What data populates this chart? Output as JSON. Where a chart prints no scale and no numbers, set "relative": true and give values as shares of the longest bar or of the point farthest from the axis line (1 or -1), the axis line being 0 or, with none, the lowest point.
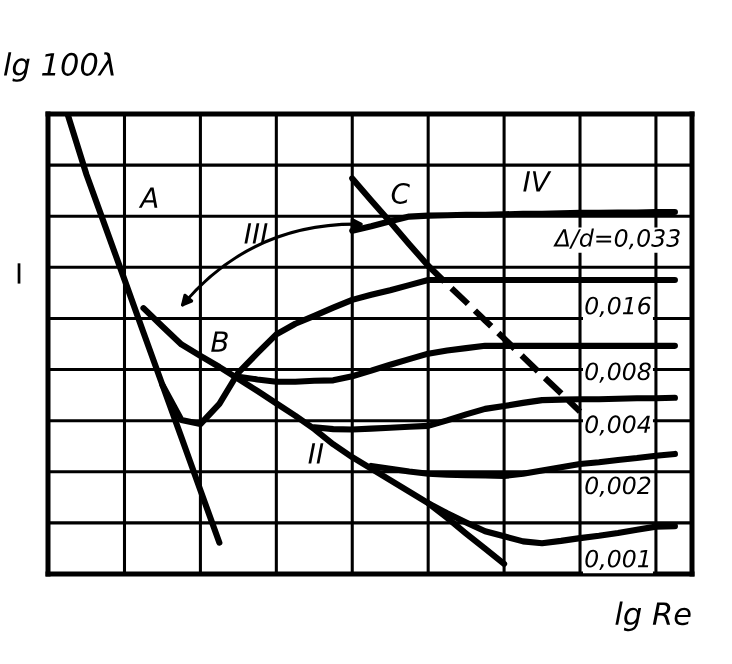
{
  "chart_data": {
    "type": "line",
    "relative": true,
    "xlabel": "lg Re",
    "ylabel": "lg 100λ",
    "categories": [
      null,
      null,
      null,
      null,
      null,
      null,
      null,
      null,
      null,
      null,
      null,
      null,
      null,
      null,
      null,
      null,
      null,
      null,
      null,
      null,
      null,
      null,
      null,
      null,
      null,
      null,
      null,
      null,
      null,
      null,
      null,
      null,
      null,
      null
    ],
    "grid": true,
    "tick_labels": false,
    "marker": "none",
    "series": [
      {
        "color": "#000000",
        "values": [
          null,
          1.0,
          0.868,
          0.754,
          0.64,
          0.525,
          0.411,
          0.297,
          0.182,
          0.068,
          null,
          null,
          null,
          null,
          null,
          null,
          null,
          null,
          null,
          null,
          null,
          null,
          null,
          null,
          null,
          null,
          null,
          null,
          null,
          null,
          null,
          null,
          null,
          null
        ]
      },
      {
        "color": "#000000",
        "values": [
          null,
          null,
          null,
          null,
          null,
          0.578,
          0.538,
          0.499,
          0.474,
          0.45,
          0.424,
          0.398,
          0.371,
          0.344,
          0.315,
          0.282,
          0.254,
          0.229,
          0.204,
          0.179,
          0.154,
          0.122,
          0.088,
          0.055,
          0.022,
          null,
          null,
          null,
          null,
          null,
          null,
          null,
          null,
          null
        ]
      },
      {
        "name": "Δ/d=0,033",
        "color": "#000000",
        "values": [
          null,
          null,
          null,
          null,
          null,
          null,
          null,
          null,
          null,
          null,
          null,
          null,
          null,
          null,
          null,
          null,
          0.746,
          0.756,
          0.767,
          0.777,
          0.779,
          0.78,
          0.781,
          0.781,
          0.782,
          0.783,
          0.783,
          0.784,
          0.785,
          0.785,
          0.786,
          0.786,
          0.787,
          0.787
        ]
      },
      {
        "name": "0,016",
        "color": "#000000",
        "values": [
          null,
          null,
          null,
          null,
          null,
          null,
          0.411,
          0.335,
          0.326,
          0.37,
          0.438,
          0.48,
          0.521,
          0.544,
          0.561,
          0.579,
          0.596,
          0.607,
          0.617,
          0.628,
          0.639,
          0.639,
          0.639,
          0.639,
          0.639,
          0.639,
          0.639,
          0.639,
          0.639,
          0.639,
          0.639,
          0.639,
          0.639,
          0.639
        ]
      },
      {
        "name": "0,008",
        "color": "#000000",
        "values": [
          null,
          null,
          null,
          null,
          null,
          null,
          null,
          null,
          null,
          null,
          0.429,
          0.423,
          0.418,
          0.418,
          0.42,
          0.421,
          0.43,
          0.442,
          0.455,
          0.467,
          0.479,
          0.486,
          0.491,
          0.496,
          0.496,
          0.496,
          0.496,
          0.496,
          0.496,
          0.496,
          0.496,
          0.496,
          0.496,
          0.496
        ]
      },
      {
        "name": "0,004",
        "color": "#000000",
        "values": [
          null,
          null,
          null,
          null,
          null,
          null,
          null,
          null,
          null,
          null,
          null,
          null,
          null,
          null,
          0.319,
          0.315,
          0.314,
          0.316,
          0.318,
          0.32,
          0.322,
          0.334,
          0.347,
          0.359,
          0.365,
          0.372,
          0.378,
          0.379,
          0.38,
          0.38,
          0.381,
          0.382,
          0.382,
          0.383
        ]
      },
      {
        "name": "0,002",
        "color": "#000000",
        "values": [
          null,
          null,
          null,
          null,
          null,
          null,
          null,
          null,
          null,
          null,
          null,
          null,
          null,
          null,
          null,
          null,
          null,
          0.235,
          0.229,
          0.223,
          0.218,
          0.216,
          0.215,
          0.214,
          0.213,
          0.218,
          0.225,
          0.232,
          0.239,
          0.243,
          0.248,
          0.252,
          0.257,
          0.261
        ]
      },
      {
        "name": "0,001",
        "color": "#000000",
        "values": [
          null,
          null,
          null,
          null,
          null,
          null,
          null,
          null,
          null,
          null,
          null,
          null,
          null,
          null,
          null,
          null,
          null,
          null,
          null,
          null,
          0.154,
          0.132,
          0.112,
          0.093,
          0.082,
          0.071,
          0.067,
          0.072,
          0.078,
          0.083,
          0.089,
          0.096,
          0.103,
          0.104
        ]
      },
      {
        "color": "#000000",
        "line_style": "solid",
        "values": [
          null,
          null,
          null,
          null,
          null,
          null,
          null,
          null,
          null,
          null,
          null,
          null,
          null,
          null,
          null,
          null,
          0.86,
          0.812,
          0.765,
          0.717,
          0.67,
          null,
          null,
          null,
          null,
          null,
          null,
          null,
          null,
          null,
          null,
          null,
          null,
          null
        ]
      },
      {
        "color": "#000000",
        "line_style": "dashed",
        "values": [
          null,
          null,
          null,
          null,
          null,
          null,
          null,
          null,
          null,
          null,
          null,
          null,
          null,
          null,
          null,
          null,
          null,
          null,
          null,
          null,
          0.67,
          0.63,
          0.591,
          0.551,
          0.512,
          0.472,
          0.432,
          0.393,
          0.353,
          null,
          null,
          null,
          null,
          null
        ]
      }
    ],
    "annotations": [
      "I",
      "A",
      "B",
      "C",
      "II",
      "III",
      "IV"
    ]
  }
}
